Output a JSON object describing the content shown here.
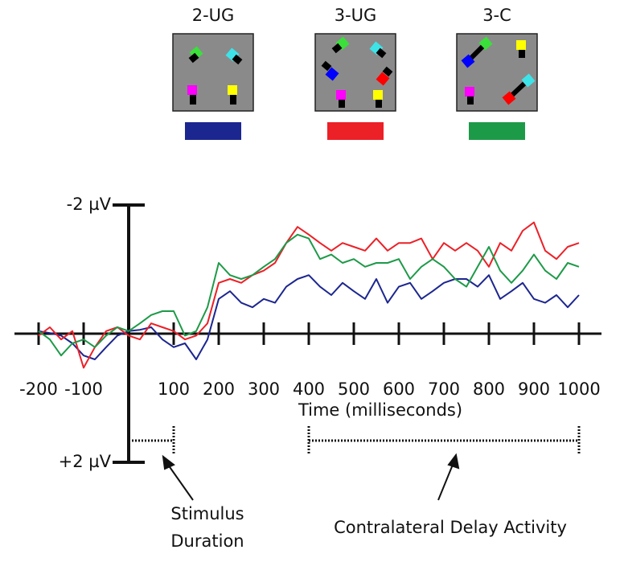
{
  "chart_data": {
    "type": "line",
    "x_label": "Time (milliseconds)",
    "x": [
      -200,
      -175,
      -150,
      -125,
      -100,
      -75,
      -50,
      -25,
      0,
      25,
      50,
      75,
      100,
      125,
      150,
      175,
      200,
      225,
      250,
      275,
      300,
      325,
      350,
      375,
      400,
      425,
      450,
      475,
      500,
      525,
      550,
      575,
      600,
      625,
      650,
      675,
      700,
      725,
      750,
      775,
      800,
      825,
      850,
      875,
      900,
      925,
      950,
      975,
      1000
    ],
    "xlim": [
      -250,
      1050
    ],
    "xticks": [
      -200,
      -100,
      100,
      200,
      300,
      400,
      500,
      600,
      700,
      800,
      900,
      1000
    ],
    "ylim": [
      2,
      -2
    ],
    "yticks": [
      {
        "value": -2,
        "label": "-2 µV"
      },
      {
        "value": 2,
        "label": "+2 µV"
      }
    ],
    "series": [
      {
        "name": "2-UG",
        "color": "#1c2690",
        "values": [
          -0.04,
          -0.01,
          0.03,
          0.15,
          0.34,
          0.4,
          0.21,
          0.03,
          -0.04,
          -0.06,
          -0.1,
          0.09,
          0.21,
          0.15,
          0.4,
          0.09,
          -0.54,
          -0.66,
          -0.48,
          -0.41,
          -0.54,
          -0.48,
          -0.73,
          -0.85,
          -0.91,
          -0.73,
          -0.6,
          -0.79,
          -0.66,
          -0.54,
          -0.85,
          -0.48,
          -0.73,
          -0.79,
          -0.54,
          -0.66,
          -0.79,
          -0.85,
          -0.85,
          -0.73,
          -0.91,
          -0.54,
          -0.66,
          -0.79,
          -0.54,
          -0.48,
          -0.6,
          -0.41,
          -0.6
        ]
      },
      {
        "name": "3-UG",
        "color": "#ec2027",
        "values": [
          0.03,
          -0.1,
          0.09,
          -0.04,
          0.53,
          0.21,
          -0.04,
          -0.1,
          0.03,
          0.09,
          -0.16,
          -0.1,
          -0.04,
          0.09,
          0.03,
          -0.16,
          -0.79,
          -0.85,
          -0.79,
          -0.91,
          -0.98,
          -1.1,
          -1.41,
          -1.66,
          -1.54,
          -1.41,
          -1.29,
          -1.41,
          -1.35,
          -1.29,
          -1.48,
          -1.29,
          -1.41,
          -1.41,
          -1.48,
          -1.16,
          -1.41,
          -1.29,
          -1.41,
          -1.29,
          -1.04,
          -1.41,
          -1.29,
          -1.6,
          -1.73,
          -1.29,
          -1.16,
          -1.35,
          -1.41
        ]
      },
      {
        "name": "3-C",
        "color": "#1d9a48",
        "values": [
          -0.04,
          0.09,
          0.34,
          0.15,
          0.09,
          0.21,
          0.03,
          -0.1,
          -0.04,
          -0.16,
          -0.29,
          -0.35,
          -0.35,
          0.03,
          -0.04,
          -0.41,
          -1.1,
          -0.91,
          -0.85,
          -0.91,
          -1.04,
          -1.16,
          -1.41,
          -1.54,
          -1.48,
          -1.16,
          -1.23,
          -1.1,
          -1.16,
          -1.04,
          -1.1,
          -1.1,
          -1.16,
          -0.85,
          -1.04,
          -1.16,
          -1.04,
          -0.85,
          -0.73,
          -1.04,
          -1.35,
          -0.98,
          -0.79,
          -0.98,
          -1.23,
          -0.98,
          -0.85,
          -1.1,
          -1.04
        ]
      }
    ],
    "annotations": [
      {
        "lines": [
          "Stimulus",
          "Duration"
        ],
        "start": 0,
        "end": 100
      },
      {
        "lines": [
          "Contralateral Delay Activity"
        ],
        "start": 400,
        "end": 1000
      }
    ]
  }
}
